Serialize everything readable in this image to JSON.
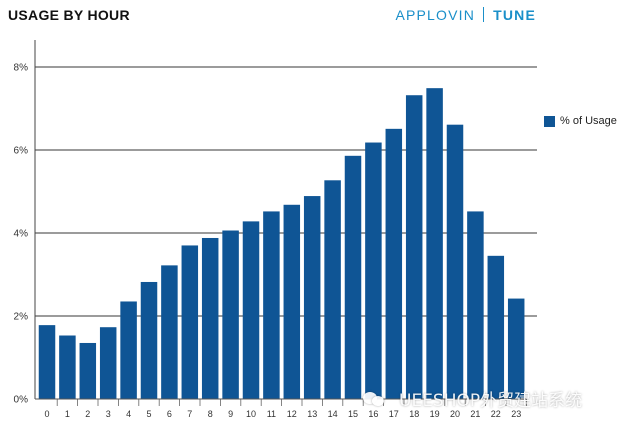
{
  "header": {
    "title": "USAGE BY HOUR",
    "brand_left": "APPLOVIN",
    "brand_right": "TUNE"
  },
  "legend": {
    "label": "% of Usage"
  },
  "watermark": {
    "text": "UEESHOP外贸建站系统"
  },
  "colors": {
    "bar": "#0f5595",
    "grid": "#7a7a7a",
    "brand": "#1a8fc9"
  },
  "chart_data": {
    "type": "bar",
    "title": "USAGE BY HOUR",
    "xlabel": "",
    "ylabel": "",
    "categories": [
      "0",
      "1",
      "2",
      "3",
      "4",
      "5",
      "6",
      "7",
      "8",
      "9",
      "10",
      "11",
      "12",
      "13",
      "14",
      "15",
      "16",
      "17",
      "18",
      "19",
      "20",
      "21",
      "22",
      "23"
    ],
    "series": [
      {
        "name": "% of Usage",
        "values": [
          1.78,
          1.53,
          1.35,
          1.73,
          2.35,
          2.82,
          3.22,
          3.7,
          3.88,
          4.06,
          4.28,
          4.52,
          4.68,
          4.89,
          5.27,
          5.86,
          6.18,
          6.51,
          7.32,
          7.49,
          6.61,
          4.52,
          3.45,
          2.42
        ]
      }
    ],
    "yticks": [
      "0%",
      "2%",
      "4%",
      "6%",
      "8%"
    ],
    "ytick_values": [
      0,
      2,
      4,
      6,
      8
    ],
    "ylim": [
      0,
      8
    ],
    "grid": true,
    "legend_position": "right"
  }
}
